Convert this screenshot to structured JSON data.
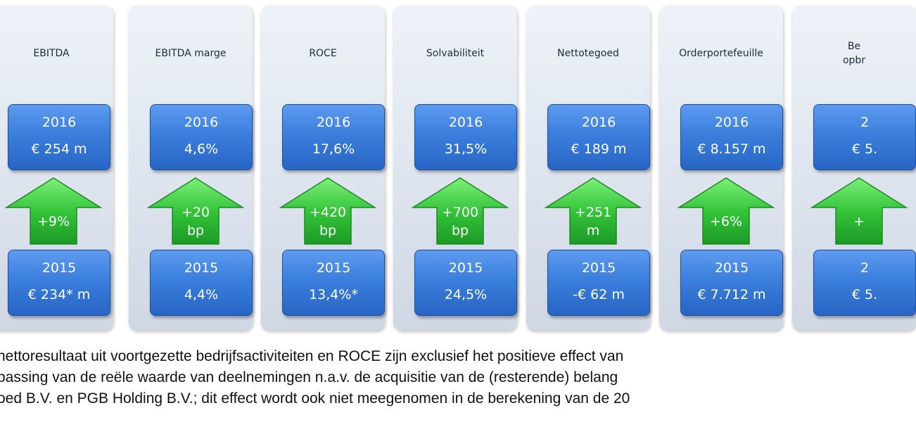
{
  "columns": [
    {
      "title": [
        "EBITDA"
      ],
      "top_year": "2016",
      "top_value": "€ 254 m",
      "change": [
        "+9%"
      ],
      "bottom_year": "2015",
      "bottom_value": "€ 234* m"
    },
    {
      "title": [
        "EBITDA marge"
      ],
      "top_year": "2016",
      "top_value": "4,6%",
      "change": [
        "+20",
        "bp"
      ],
      "bottom_year": "2015",
      "bottom_value": "4,4%"
    },
    {
      "title": [
        "ROCE"
      ],
      "top_year": "2016",
      "top_value": "17,6%",
      "change": [
        "+420",
        "bp"
      ],
      "bottom_year": "2015",
      "bottom_value": "13,4%*"
    },
    {
      "title": [
        "Solvabiliteit"
      ],
      "top_year": "2016",
      "top_value": "31,5%",
      "change": [
        "+700",
        "bp"
      ],
      "bottom_year": "2015",
      "bottom_value": "24,5%"
    },
    {
      "title": [
        "Nettotegoed"
      ],
      "top_year": "2016",
      "top_value": "€ 189 m",
      "change": [
        "+251",
        "m"
      ],
      "bottom_year": "2015",
      "bottom_value": "-€ 62 m"
    },
    {
      "title": [
        "Orderportefeuille"
      ],
      "top_year": "2016",
      "top_value": "€ 8.157 m",
      "change": [
        "+6%"
      ],
      "bottom_year": "2015",
      "bottom_value": "€ 7.712 m"
    },
    {
      "title": [
        "Be",
        "opbr"
      ],
      "top_year": "2",
      "top_value": "€ 5.",
      "change": [
        "+"
      ],
      "bottom_year": "2",
      "bottom_value": "€ 5."
    }
  ],
  "footnote": [
    "nettoresultaat uit voortgezette bedrijfsactiviteiten en ROCE zijn exclusief het positieve effect van",
    "passing van de reële waarde van deelnemingen n.a.v. de acquisitie van de (resterende) belang",
    "oed B.V. en PGB Holding B.V.; dit effect wordt ook niet meegenomen in de berekening van de 20"
  ],
  "colors": {
    "box_blue": "#3b7fdc",
    "arrow_green": "#2fc23a",
    "panel_grey": "#dde4ee"
  }
}
